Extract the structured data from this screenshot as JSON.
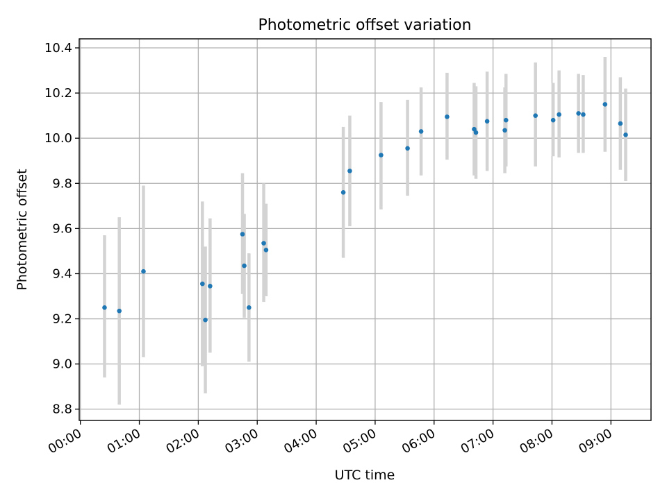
{
  "chart_data": {
    "type": "scatter",
    "title": "Photometric offset variation",
    "xlabel": "UTC time",
    "ylabel": "Photometric offset",
    "x_unit": "hours UTC",
    "xlim": [
      -0.02,
      9.68
    ],
    "ylim": [
      8.75,
      10.44
    ],
    "grid": true,
    "x_ticks": [
      {
        "value": 0,
        "label": "00:00"
      },
      {
        "value": 1,
        "label": "01:00"
      },
      {
        "value": 2,
        "label": "02:00"
      },
      {
        "value": 3,
        "label": "03:00"
      },
      {
        "value": 4,
        "label": "04:00"
      },
      {
        "value": 5,
        "label": "05:00"
      },
      {
        "value": 6,
        "label": "06:00"
      },
      {
        "value": 7,
        "label": "07:00"
      },
      {
        "value": 8,
        "label": "08:00"
      },
      {
        "value": 9,
        "label": "09:00"
      }
    ],
    "y_ticks": [
      {
        "value": 8.8,
        "label": "8.8"
      },
      {
        "value": 9.0,
        "label": "9.0"
      },
      {
        "value": 9.2,
        "label": "9.2"
      },
      {
        "value": 9.4,
        "label": "9.4"
      },
      {
        "value": 9.6,
        "label": "9.6"
      },
      {
        "value": 9.8,
        "label": "9.8"
      },
      {
        "value": 10.0,
        "label": "10.0"
      },
      {
        "value": 10.2,
        "label": "10.2"
      },
      {
        "value": 10.4,
        "label": "10.4"
      }
    ],
    "colors": {
      "point": "#1f77b4",
      "errorbar": "#d3d3d3",
      "grid": "#b0b0b0"
    },
    "points": [
      {
        "x": 0.41,
        "y": 9.25,
        "err_low": 8.94,
        "err_high": 9.57
      },
      {
        "x": 0.66,
        "y": 9.235,
        "err_low": 8.82,
        "err_high": 9.65
      },
      {
        "x": 1.07,
        "y": 9.41,
        "err_low": 9.03,
        "err_high": 9.79
      },
      {
        "x": 2.07,
        "y": 9.355,
        "err_low": 8.99,
        "err_high": 9.72
      },
      {
        "x": 2.12,
        "y": 9.195,
        "err_low": 8.87,
        "err_high": 9.52
      },
      {
        "x": 2.2,
        "y": 9.345,
        "err_low": 9.05,
        "err_high": 9.645
      },
      {
        "x": 2.75,
        "y": 9.575,
        "err_low": 9.31,
        "err_high": 9.845
      },
      {
        "x": 2.78,
        "y": 9.435,
        "err_low": 9.205,
        "err_high": 9.665
      },
      {
        "x": 2.86,
        "y": 9.25,
        "err_low": 9.01,
        "err_high": 9.49
      },
      {
        "x": 3.11,
        "y": 9.535,
        "err_low": 9.275,
        "err_high": 9.8
      },
      {
        "x": 3.15,
        "y": 9.505,
        "err_low": 9.3,
        "err_high": 9.71
      },
      {
        "x": 4.46,
        "y": 9.76,
        "err_low": 9.47,
        "err_high": 10.05
      },
      {
        "x": 4.57,
        "y": 9.855,
        "err_low": 9.61,
        "err_high": 10.1
      },
      {
        "x": 5.1,
        "y": 9.925,
        "err_low": 9.685,
        "err_high": 10.16
      },
      {
        "x": 5.55,
        "y": 9.955,
        "err_low": 9.745,
        "err_high": 10.17
      },
      {
        "x": 5.78,
        "y": 10.03,
        "err_low": 9.835,
        "err_high": 10.225
      },
      {
        "x": 6.22,
        "y": 10.095,
        "err_low": 9.905,
        "err_high": 10.29
      },
      {
        "x": 6.68,
        "y": 10.04,
        "err_low": 9.835,
        "err_high": 10.245
      },
      {
        "x": 6.71,
        "y": 10.025,
        "err_low": 9.82,
        "err_high": 10.23
      },
      {
        "x": 6.9,
        "y": 10.075,
        "err_low": 9.855,
        "err_high": 10.295
      },
      {
        "x": 7.2,
        "y": 10.035,
        "err_low": 9.845,
        "err_high": 10.225
      },
      {
        "x": 7.22,
        "y": 10.08,
        "err_low": 9.875,
        "err_high": 10.285
      },
      {
        "x": 7.72,
        "y": 10.1,
        "err_low": 9.875,
        "err_high": 10.335
      },
      {
        "x": 8.02,
        "y": 10.08,
        "err_low": 9.92,
        "err_high": 10.245
      },
      {
        "x": 8.12,
        "y": 10.105,
        "err_low": 9.915,
        "err_high": 10.3
      },
      {
        "x": 8.45,
        "y": 10.11,
        "err_low": 9.935,
        "err_high": 10.285
      },
      {
        "x": 8.53,
        "y": 10.105,
        "err_low": 9.935,
        "err_high": 10.28
      },
      {
        "x": 8.9,
        "y": 10.15,
        "err_low": 9.94,
        "err_high": 10.36
      },
      {
        "x": 9.16,
        "y": 10.065,
        "err_low": 9.86,
        "err_high": 10.27
      },
      {
        "x": 9.25,
        "y": 10.015,
        "err_low": 9.81,
        "err_high": 10.22
      }
    ]
  }
}
